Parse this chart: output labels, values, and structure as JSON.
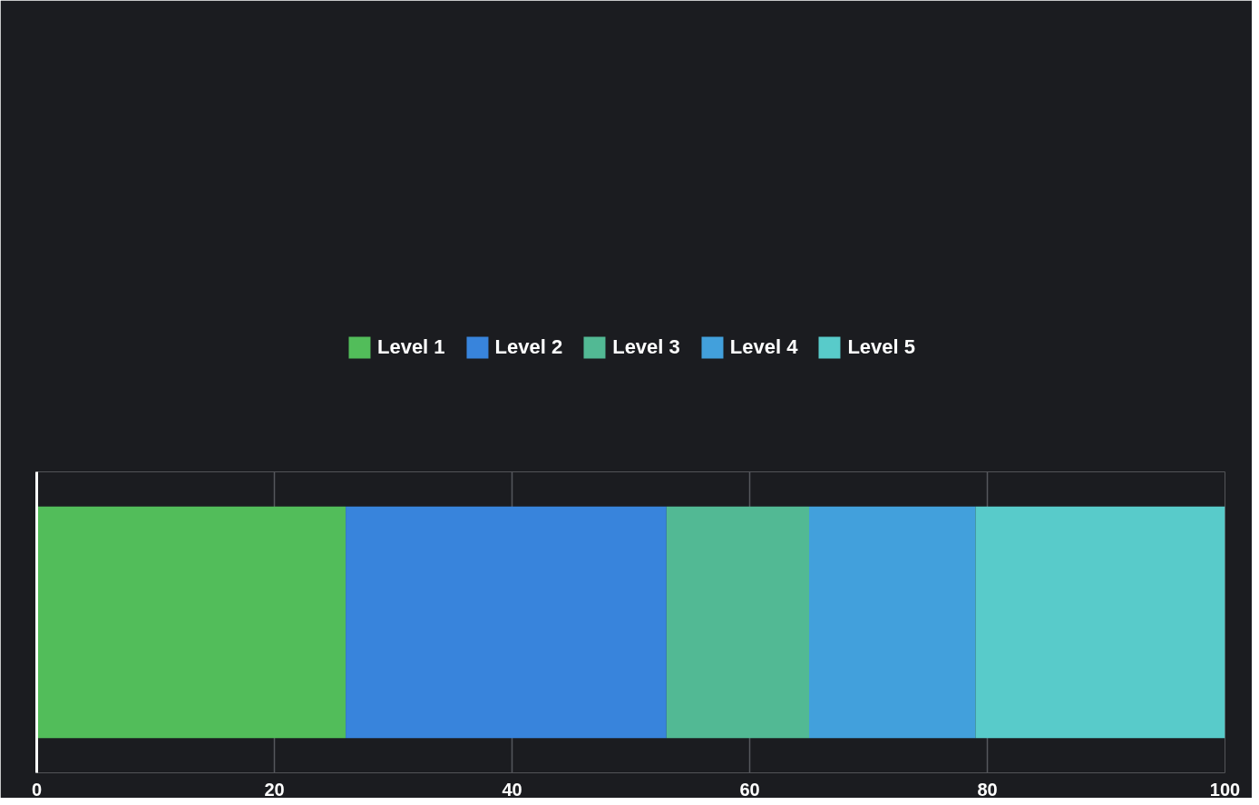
{
  "chart_data": {
    "type": "bar",
    "orientation": "horizontal",
    "stacked": true,
    "categories": [
      null
    ],
    "series": [
      {
        "name": "Level 1",
        "color": "#52bd5a",
        "values": [
          26
        ]
      },
      {
        "name": "Level 2",
        "color": "#3884dc",
        "values": [
          27
        ]
      },
      {
        "name": "Level 3",
        "color": "#52b994",
        "values": [
          12
        ]
      },
      {
        "name": "Level 4",
        "color": "#42a0dc",
        "values": [
          14
        ]
      },
      {
        "name": "Level 5",
        "color": "#58cbca",
        "values": [
          21
        ]
      }
    ],
    "xlim": [
      0,
      100
    ],
    "xticks": [
      0,
      20,
      40,
      60,
      80,
      100
    ],
    "grid": "x",
    "legend": "top"
  }
}
